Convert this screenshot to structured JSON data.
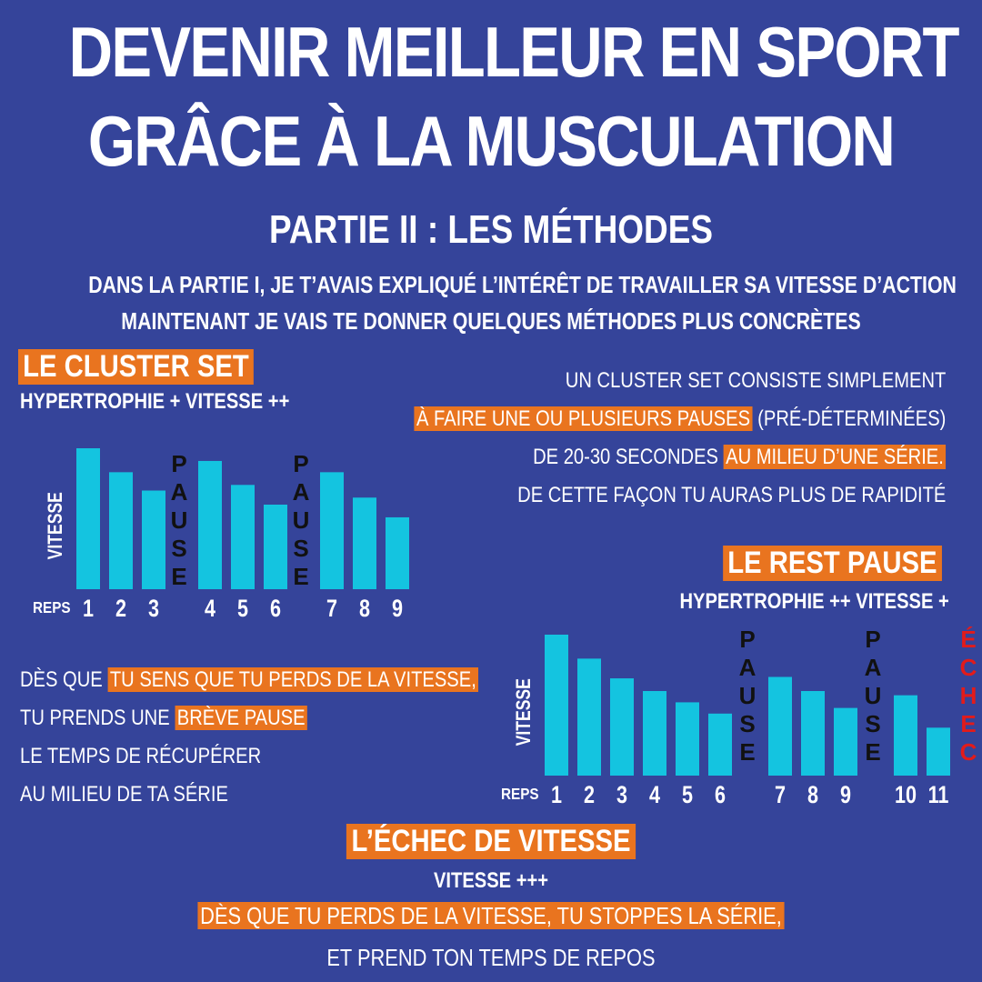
{
  "title": {
    "line1": "DEVENIR MEILLEUR EN SPORT",
    "line2": "GRÂCE À LA MUSCULATION",
    "subtitle": "PARTIE II : LES MÉTHODES"
  },
  "intro": {
    "line1": "DANS LA PARTIE I, JE T’AVAIS EXPLIQUÉ L’INTÉRÊT DE TRAVAILLER SA VITESSE D’ACTION",
    "line2": "MAINTENANT JE VAIS TE DONNER QUELQUES MÉTHODES PLUS CONCRÈTES"
  },
  "cluster": {
    "heading": "LE CLUSTER SET",
    "subheading": "HYPERTROPHIE + VITESSE ++",
    "desc": {
      "l1": "UN CLUSTER SET CONSISTE SIMPLEMENT",
      "l2_hl": "À FAIRE UNE OU PLUSIEURS PAUSES",
      "l2_rest": " (PRÉ-DÉTERMINÉES)",
      "l3_pre": "DE 20-30 SECONDES ",
      "l3_hl": "AU MILIEU D’UNE SÉRIE.",
      "l4": "DE CETTE FAÇON TU AURAS PLUS DE RAPIDITÉ"
    }
  },
  "rest_pause": {
    "heading": "LE REST PAUSE",
    "subheading": "HYPERTROPHIE ++ VITESSE +",
    "desc": {
      "l1_pre": "DÈS QUE ",
      "l1_hl": "TU SENS QUE TU PERDS DE LA VITESSE,",
      "l2_pre": "TU PRENDS UNE ",
      "l2_hl": "BRÈVE PAUSE",
      "l3": "LE TEMPS DE RÉCUPÉRER",
      "l4": "AU MILIEU DE TA SÉRIE"
    }
  },
  "velocity_failure": {
    "heading": "L’ÉCHEC DE VITESSE",
    "subheading": "VITESSE +++",
    "line1": "DÈS QUE TU PERDS DE LA VITESSE, TU STOPPES LA SÉRIE,",
    "line2": "ET PREND TON TEMPS DE REPOS"
  },
  "colors": {
    "background": "#35449a",
    "accent": "#e9741f",
    "bar": "#14c4e0",
    "pause_text": "#111111",
    "failure_text": "#e21b1b"
  },
  "chart_data": [
    {
      "type": "bar",
      "ylabel": "VITESSE",
      "xlabel": "REPS",
      "categories": [
        "1",
        "2",
        "3",
        "4",
        "5",
        "6",
        "7",
        "8",
        "9"
      ],
      "values": [
        100,
        83,
        70,
        91,
        74,
        60,
        83,
        65,
        51
      ],
      "ylim": [
        0,
        100
      ],
      "pause_label": "PAUSE",
      "pauses_after": [
        "3",
        "6"
      ],
      "grid": false
    },
    {
      "type": "bar",
      "ylabel": "VITESSE",
      "xlabel": "REPS",
      "categories": [
        "1",
        "2",
        "3",
        "4",
        "5",
        "6",
        "7",
        "8",
        "9",
        "10",
        "11"
      ],
      "values": [
        100,
        83,
        69,
        60,
        52,
        44,
        70,
        60,
        48,
        57,
        34
      ],
      "ylim": [
        0,
        100
      ],
      "pause_label": "PAUSE",
      "pauses_after": [
        "6",
        "9"
      ],
      "failure_label": "ÉCHEC",
      "grid": false
    }
  ]
}
